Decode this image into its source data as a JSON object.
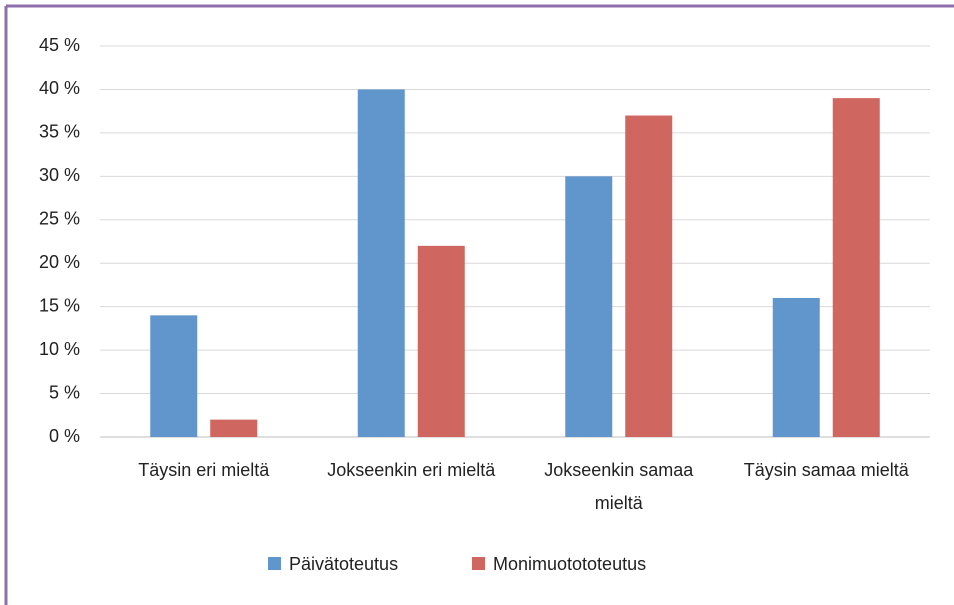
{
  "chart_data": {
    "type": "bar",
    "categories": [
      "Täysin eri mieltä",
      "Jokseenkin eri mieltä",
      "Jokseenkin samaa mieltä",
      "Täysin samaa mieltä"
    ],
    "series": [
      {
        "name": "Päivätoteutus",
        "color": "#6096cc",
        "values": [
          14,
          40,
          30,
          16
        ]
      },
      {
        "name": "Monimuotototeutus",
        "color": "#cf665f",
        "values": [
          2,
          22,
          37,
          39
        ]
      }
    ],
    "ylim": [
      0,
      45
    ],
    "yticks": [
      {
        "value": 0,
        "label": "0 %"
      },
      {
        "value": 5,
        "label": "5 %"
      },
      {
        "value": 10,
        "label": "10 %"
      },
      {
        "value": 15,
        "label": "15 %"
      },
      {
        "value": 20,
        "label": "20 %"
      },
      {
        "value": 25,
        "label": "25 %"
      },
      {
        "value": 30,
        "label": "30 %"
      },
      {
        "value": 35,
        "label": "35 %"
      },
      {
        "value": 40,
        "label": "40 %"
      },
      {
        "value": 45,
        "label": "45 %"
      }
    ],
    "grid": true,
    "legend": "bottom"
  }
}
